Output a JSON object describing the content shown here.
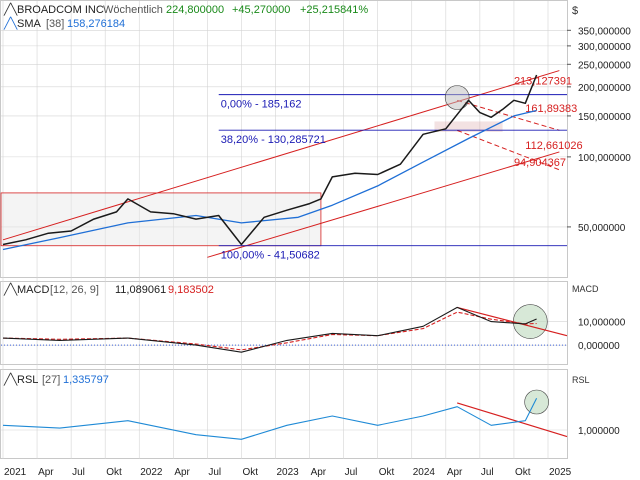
{
  "header": {
    "main": {
      "name": "BROADCOM INC",
      "interval": "Wöchentlich",
      "price": "224,800000",
      "change": "+45,270000",
      "change_pct": "+25,215841%"
    },
    "sma": {
      "label": "SMA",
      "param": "[38]",
      "value": "158,276184"
    },
    "macd": {
      "label": "MACD",
      "params": "[12, 26, 9]",
      "value1": "11,089061",
      "value2": "9,183502"
    },
    "rsl": {
      "label": "RSL",
      "param": "[27]",
      "value": "1,335797"
    }
  },
  "panel_labels": {
    "currency": "$",
    "macd": "MACD",
    "rsl": "RSL"
  },
  "colors": {
    "price": "#1a1a1a",
    "sma": "#1f6fd6",
    "channel": "#d62020",
    "fib": "#1a1ab4",
    "macd_line": "#1a1a1a",
    "macd_signal": "#d62020",
    "rsl_line": "#1f8ad6",
    "highlight": "#bcd8bc",
    "grid": "#d4d4d4"
  },
  "chart_data": [
    {
      "type": "line",
      "name": "price",
      "title": "BROADCOM INC",
      "x_ticks": [
        "2021",
        "Apr",
        "Jul",
        "Okt",
        "2022",
        "Apr",
        "Jul",
        "Okt",
        "2023",
        "Apr",
        "Jul",
        "Okt",
        "2024",
        "Apr",
        "Jul",
        "Okt",
        "2025"
      ],
      "scale": "log",
      "y_ticks": [
        "350,000000",
        "300,000000",
        "250,000000",
        "200,000000",
        "150,000000",
        "100,000000",
        "50,000000"
      ],
      "ylim": [
        32,
        380
      ],
      "series": [
        {
          "name": "BROADCOM INC",
          "x": [
            "2021-01",
            "2021-03",
            "2021-05",
            "2021-07",
            "2021-09",
            "2021-11",
            "2021-12",
            "2022-02",
            "2022-04",
            "2022-06",
            "2022-08",
            "2022-10",
            "2022-12",
            "2023-02",
            "2023-04",
            "2023-05",
            "2023-06",
            "2023-08",
            "2023-10",
            "2023-12",
            "2024-02",
            "2024-04",
            "2024-06",
            "2024-07",
            "2024-08",
            "2024-09",
            "2024-10",
            "2024-11",
            "2024-12"
          ],
          "values": [
            42,
            44,
            47,
            48,
            54,
            58,
            66,
            58,
            57,
            54,
            56,
            42,
            55,
            59,
            63,
            66,
            82,
            85,
            84,
            93,
            125,
            132,
            175,
            155,
            148,
            160,
            175,
            170,
            224.8
          ]
        },
        {
          "name": "SMA [38]",
          "x": [
            "2021-01",
            "2021-06",
            "2021-12",
            "2022-06",
            "2022-10",
            "2023-03",
            "2023-06",
            "2023-10",
            "2024-02",
            "2024-06",
            "2024-10",
            "2024-12"
          ],
          "values": [
            40,
            45,
            52,
            56,
            52,
            55,
            62,
            75,
            95,
            120,
            150,
            158.28
          ]
        }
      ],
      "annotations": [
        {
          "text": "0,00% - 185,162",
          "value": 185.162
        },
        {
          "text": "38,20% - 130,285721",
          "value": 130.285721
        },
        {
          "text": "100,00% - 41,50682",
          "value": 41.50682
        },
        {
          "text": "213,127391",
          "value": 213.127391
        },
        {
          "text": "161,89383",
          "value": 161.89383
        },
        {
          "text": "112,661026",
          "value": 112.661026
        },
        {
          "text": "94,904367",
          "value": 94.904367
        }
      ]
    },
    {
      "type": "line",
      "name": "macd",
      "title": "MACD [12, 26, 9]",
      "y_ticks": [
        "10,000000",
        "0,000000"
      ],
      "series": [
        {
          "name": "MACD",
          "x": [
            "2021-01",
            "2021-06",
            "2021-12",
            "2022-06",
            "2022-10",
            "2023-02",
            "2023-06",
            "2023-10",
            "2024-02",
            "2024-05",
            "2024-08",
            "2024-11",
            "2024-12"
          ],
          "values": [
            3,
            2,
            3,
            0,
            -3,
            2,
            5,
            4,
            8,
            16,
            10,
            9,
            11.09
          ]
        },
        {
          "name": "Signal",
          "x": [
            "2021-01",
            "2021-06",
            "2021-12",
            "2022-06",
            "2022-10",
            "2023-02",
            "2023-06",
            "2023-10",
            "2024-02",
            "2024-05",
            "2024-08",
            "2024-11",
            "2024-12"
          ],
          "values": [
            3,
            2.5,
            3,
            0.5,
            -2,
            1,
            4.5,
            4,
            7,
            14,
            11,
            9,
            9.18
          ]
        }
      ]
    },
    {
      "type": "line",
      "name": "rsl",
      "title": "RSL [27]",
      "y_ticks": [
        "1,000000"
      ],
      "series": [
        {
          "name": "RSL",
          "x": [
            "2021-01",
            "2021-06",
            "2021-12",
            "2022-06",
            "2022-10",
            "2023-02",
            "2023-06",
            "2023-10",
            "2024-02",
            "2024-05",
            "2024-08",
            "2024-11",
            "2024-12"
          ],
          "values": [
            1.05,
            1.02,
            1.1,
            0.95,
            0.9,
            1.05,
            1.15,
            1.05,
            1.15,
            1.25,
            1.05,
            1.1,
            1.34
          ]
        }
      ]
    }
  ]
}
